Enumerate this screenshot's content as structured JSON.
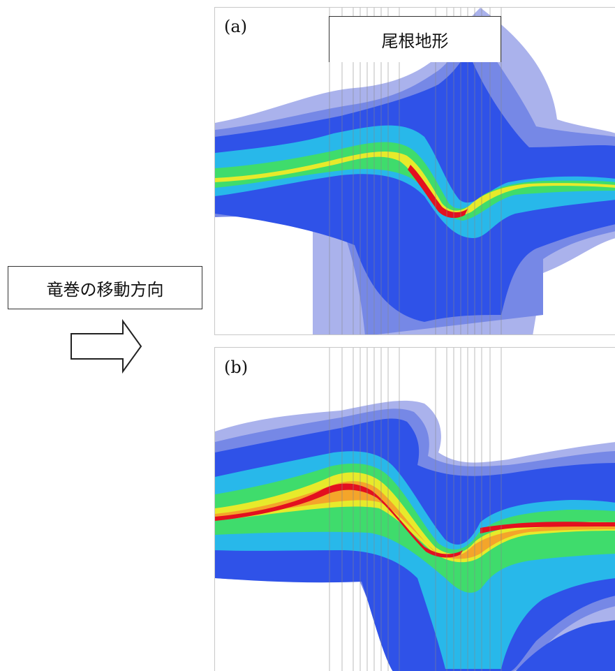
{
  "legend": {
    "text": "竜巻の移動方向"
  },
  "arrow": {
    "icon": "right-outline-arrow-icon"
  },
  "panel_a": {
    "label": "(a)"
  },
  "panel_b": {
    "label": "(b)"
  },
  "terrain": {
    "label": "尾根地形"
  },
  "colors": {
    "outer": "#aab2ec",
    "light": "#7688e6",
    "mid": "#2f52e8",
    "deep": "#1f47de",
    "cyan": "#28b8ea",
    "teal": "#25d6c0",
    "green": "#3fdc6c",
    "yellow": "#e7ea2b",
    "orange": "#f4a52a",
    "red": "#e3101f"
  }
}
